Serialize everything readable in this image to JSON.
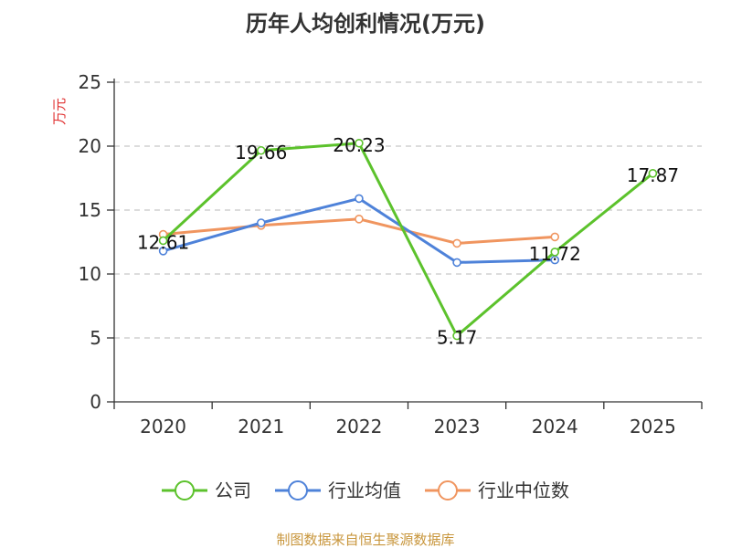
{
  "chart_data": {
    "type": "line",
    "title": "历年人均创利情况(万元)",
    "ylabel": "万元",
    "xlabel": "",
    "categories": [
      "2020",
      "2021",
      "2022",
      "2023",
      "2024",
      "2025"
    ],
    "ylim": [
      0,
      25
    ],
    "yticks": [
      "0",
      "5",
      "10",
      "15",
      "20",
      "25"
    ],
    "grid": true,
    "legend_position": "bottom",
    "series": [
      {
        "name": "公司",
        "color": "#5cc22c",
        "values": [
          12.61,
          19.66,
          20.23,
          5.17,
          11.72,
          17.87
        ],
        "labels": [
          "12.61",
          "19.66",
          "20.23",
          "5.17",
          "11.72",
          "17.87"
        ]
      },
      {
        "name": "行业均值",
        "color": "#4e82d9",
        "values": [
          11.8,
          14.0,
          15.9,
          10.9,
          11.1,
          null
        ]
      },
      {
        "name": "行业中位数",
        "color": "#f0955f",
        "values": [
          13.1,
          13.8,
          14.3,
          12.4,
          12.9,
          null
        ]
      }
    ],
    "source": "制图数据来自恒生聚源数据库"
  }
}
